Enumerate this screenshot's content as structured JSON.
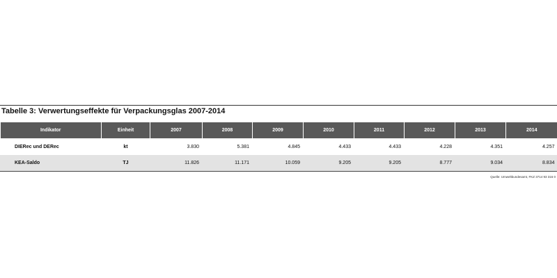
{
  "title": "Tabelle 3: Verwertungseffekte für Verpackungsglas 2007-2014",
  "table": {
    "header": [
      "Indikator",
      "Einheit",
      "2007",
      "2008",
      "2009",
      "2010",
      "2011",
      "2012",
      "2013",
      "2014"
    ],
    "rows": [
      [
        "DIERec und DERec",
        "kt",
        "3.830",
        "5.381",
        "4.845",
        "4.433",
        "4.433",
        "4.228",
        "4.351",
        "4.257"
      ],
      [
        "KEA-Saldo",
        "TJ",
        "11.826",
        "11.171",
        "10.059",
        "9.205",
        "9.205",
        "8.777",
        "9.034",
        "8.834"
      ]
    ]
  },
  "source": "Quelle: Umweltbundesamt, FKZ  3714 93 316 0"
}
